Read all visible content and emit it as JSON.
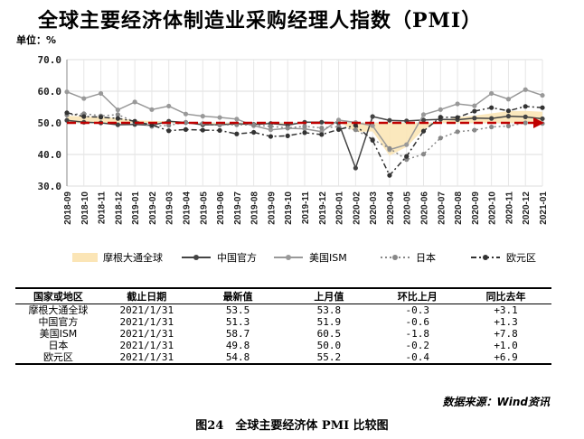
{
  "title": "全球主要经济体制造业采购经理人指数（PMI）",
  "unit_label": "单位：%",
  "chart_data": {
    "type": "line",
    "ylim": [
      30,
      70
    ],
    "yticks": [
      "70.0",
      "60.0",
      "50.0",
      "40.0",
      "30.0"
    ],
    "ytick_values": [
      70,
      60,
      50,
      40,
      30
    ],
    "categories": [
      "2018-09",
      "2018-10",
      "2018-11",
      "2018-12",
      "2019-01",
      "2019-02",
      "2019-03",
      "2019-04",
      "2019-05",
      "2019-06",
      "2019-07",
      "2019-08",
      "2019-09",
      "2019-10",
      "2019-11",
      "2019-12",
      "2020-01",
      "2020-02",
      "2020-03",
      "2020-04",
      "2020-05",
      "2020-06",
      "2020-07",
      "2020-08",
      "2020-09",
      "2020-10",
      "2020-11",
      "2020-12",
      "2021-01"
    ],
    "reference_line": 50,
    "legend_position": "bottom",
    "grid": true,
    "series": [
      {
        "name": "摩根大通全球",
        "style": "area",
        "color": "#fbe5b6",
        "values": [
          52.2,
          52.0,
          51.8,
          51.5,
          50.8,
          50.6,
          50.5,
          50.4,
          49.8,
          49.4,
          49.3,
          49.5,
          49.7,
          49.8,
          50.3,
          50.1,
          50.4,
          47.1,
          47.3,
          39.6,
          42.4,
          47.9,
          50.6,
          51.8,
          52.3,
          53.0,
          53.7,
          53.8,
          53.5
        ]
      },
      {
        "name": "中国官方",
        "style": "solid",
        "color": "#444444",
        "values": [
          50.8,
          50.2,
          50.0,
          49.4,
          49.5,
          49.2,
          50.5,
          50.1,
          49.4,
          49.4,
          49.7,
          49.5,
          49.8,
          49.3,
          50.2,
          50.2,
          50.0,
          35.7,
          52.0,
          50.8,
          50.6,
          50.9,
          51.1,
          51.0,
          51.5,
          51.4,
          52.1,
          51.9,
          51.3
        ]
      },
      {
        "name": "美国ISM",
        "style": "solid",
        "color": "#999999",
        "values": [
          59.8,
          57.7,
          59.3,
          54.1,
          56.6,
          54.2,
          55.3,
          52.8,
          52.1,
          51.7,
          51.2,
          49.1,
          47.8,
          48.3,
          48.1,
          47.2,
          50.9,
          50.1,
          49.1,
          41.5,
          43.1,
          52.6,
          54.2,
          56.0,
          55.4,
          59.3,
          57.5,
          60.5,
          58.7
        ]
      },
      {
        "name": "日本",
        "style": "dotted",
        "color": "#888888",
        "values": [
          52.5,
          52.9,
          52.2,
          52.6,
          50.3,
          48.9,
          49.2,
          50.2,
          49.8,
          49.3,
          49.4,
          49.3,
          48.9,
          48.4,
          48.9,
          48.4,
          48.8,
          47.8,
          44.8,
          41.9,
          38.4,
          40.1,
          45.2,
          47.2,
          47.7,
          48.7,
          49.0,
          50.0,
          49.8
        ]
      },
      {
        "name": "欧元区",
        "style": "dashdot",
        "color": "#333333",
        "values": [
          53.2,
          52.0,
          51.8,
          51.4,
          50.5,
          49.3,
          47.5,
          47.9,
          47.7,
          47.6,
          46.5,
          47.0,
          45.7,
          45.9,
          46.9,
          46.3,
          47.9,
          49.2,
          44.5,
          33.4,
          39.4,
          47.4,
          51.8,
          51.7,
          53.7,
          54.8,
          53.8,
          55.2,
          54.8
        ]
      }
    ]
  },
  "legend": {
    "items": [
      "摩根大通全球",
      "中国官方",
      "美国ISM",
      "日本",
      "欧元区"
    ]
  },
  "table": {
    "headers": [
      "国家或地区",
      "截止日期",
      "最新值",
      "上月值",
      "环比上月",
      "同比去年"
    ],
    "rows": [
      [
        "摩根大通全球",
        "2021/1/31",
        "53.5",
        "53.8",
        "-0.3",
        "+3.1"
      ],
      [
        "中国官方",
        "2021/1/31",
        "51.3",
        "51.9",
        "-0.6",
        "+1.3"
      ],
      [
        "美国ISM",
        "2021/1/31",
        "58.7",
        "60.5",
        "-1.8",
        "+7.8"
      ],
      [
        "日本",
        "2021/1/31",
        "49.8",
        "50.0",
        "-0.2",
        "+1.0"
      ],
      [
        "欧元区",
        "2021/1/31",
        "54.8",
        "55.2",
        "-0.4",
        "+6.9"
      ]
    ]
  },
  "source": "数据来源：Wind资讯",
  "caption": "图24　全球主要经济体 PMI 比较图"
}
